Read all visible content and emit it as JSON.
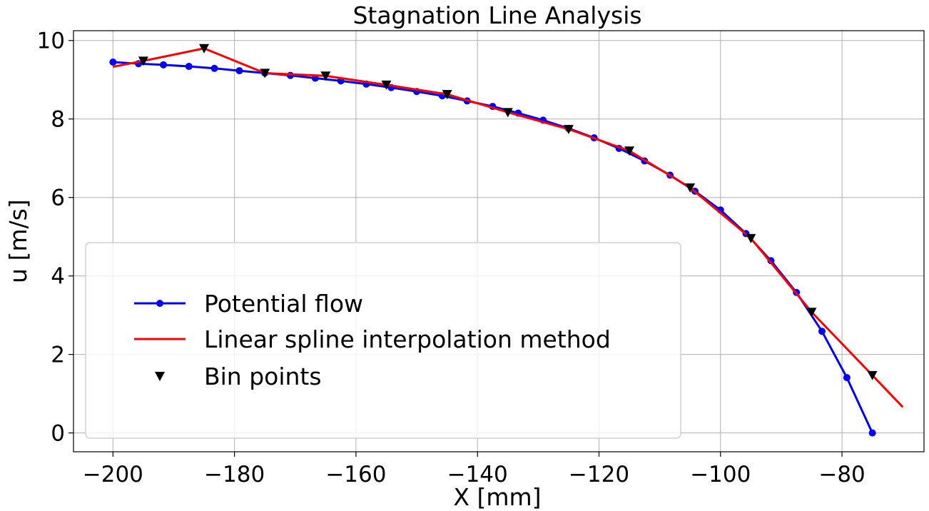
{
  "chart_data": {
    "type": "line",
    "title": "Stagnation Line Analysis",
    "xlabel": "X [mm]",
    "ylabel": "u [m/s]",
    "xlim": [
      -206.5,
      -66.5
    ],
    "ylim": [
      -0.48,
      10.25
    ],
    "xticks": [
      -200,
      -180,
      -160,
      -140,
      -120,
      -100,
      -80
    ],
    "xtick_labels": [
      "−200",
      "−180",
      "−160",
      "−140",
      "−120",
      "−100",
      "−80"
    ],
    "yticks": [
      0,
      2,
      4,
      6,
      8,
      10
    ],
    "ytick_labels": [
      "0",
      "2",
      "4",
      "6",
      "8",
      "10"
    ],
    "grid": true,
    "legend_position": "lower-left",
    "series": [
      {
        "name": "Potential flow",
        "color": "#0000ff",
        "style": "line-circle",
        "x": [
          -200,
          -195.8,
          -191.7,
          -187.5,
          -183.3,
          -179.2,
          -175,
          -170.8,
          -166.7,
          -162.5,
          -158.3,
          -154.2,
          -150,
          -145.8,
          -141.7,
          -137.5,
          -133.3,
          -129.2,
          -125,
          -120.8,
          -116.7,
          -112.5,
          -108.3,
          -104.2,
          -100,
          -95.8,
          -91.7,
          -87.5,
          -83.3,
          -79.2,
          -75
        ],
        "y": [
          9.45,
          9.41,
          9.38,
          9.34,
          9.29,
          9.23,
          9.17,
          9.11,
          9.04,
          8.97,
          8.89,
          8.8,
          8.7,
          8.59,
          8.46,
          8.32,
          8.15,
          7.97,
          7.76,
          7.52,
          7.25,
          6.93,
          6.57,
          6.16,
          5.68,
          5.08,
          4.39,
          3.58,
          2.59,
          1.41,
          0.0
        ]
      },
      {
        "name": "Linear spline interpolation method",
        "color": "#ff0000",
        "style": "line",
        "x": [
          -200,
          -195,
          -185,
          -175,
          -165,
          -155,
          -145,
          -135,
          -125,
          -115,
          -105,
          -95,
          -85,
          -75,
          -70
        ],
        "y": [
          9.33,
          9.48,
          9.8,
          9.17,
          9.1,
          8.87,
          8.63,
          8.17,
          7.74,
          7.19,
          6.25,
          4.96,
          3.08,
          1.47,
          0.66
        ]
      },
      {
        "name": "Bin points",
        "color": "#000000",
        "style": "triangle-down",
        "x": [
          -195,
          -185,
          -175,
          -165,
          -155,
          -145,
          -135,
          -125,
          -115,
          -105,
          -95,
          -85,
          -75
        ],
        "y": [
          9.48,
          9.8,
          9.17,
          9.1,
          8.87,
          8.63,
          8.17,
          7.74,
          7.19,
          6.25,
          4.96,
          3.08,
          1.47
        ]
      }
    ]
  }
}
